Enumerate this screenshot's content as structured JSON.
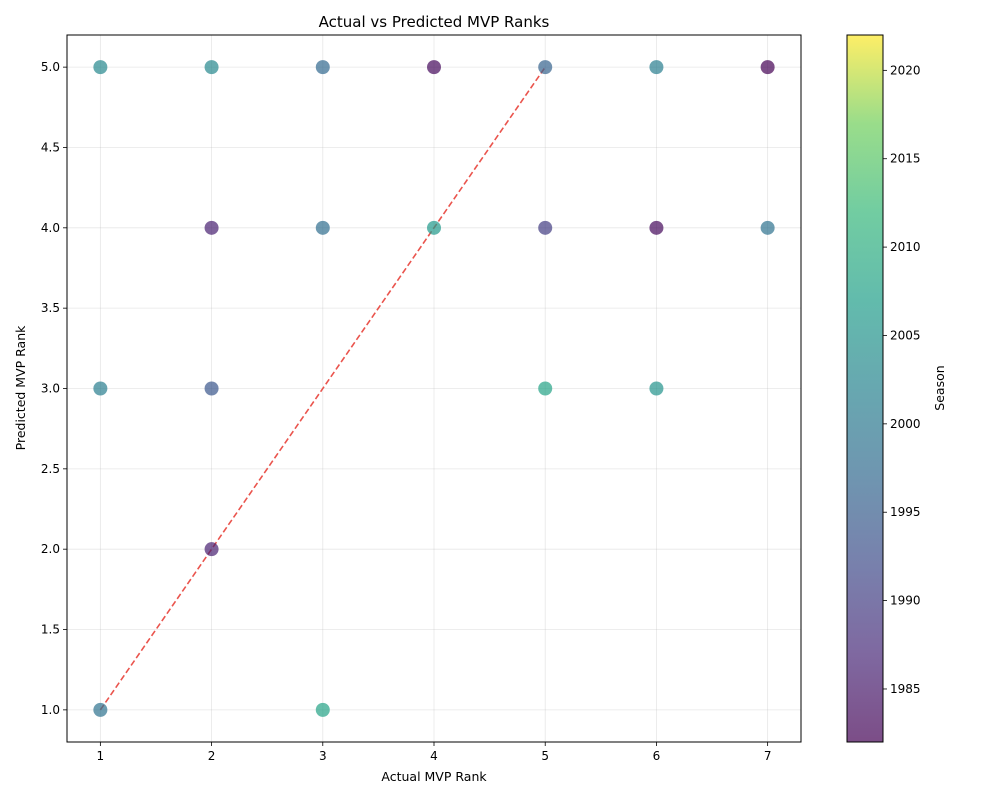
{
  "chart_data": {
    "type": "scatter",
    "title": "Actual vs Predicted MVP Ranks",
    "xlabel": "Actual MVP Rank",
    "ylabel": "Predicted MVP Rank",
    "xlim": [
      0.7,
      7.3
    ],
    "ylim": [
      0.8,
      5.2
    ],
    "xticks": [
      "1",
      "2",
      "3",
      "4",
      "5",
      "6",
      "7"
    ],
    "yticks": [
      "1.0",
      "1.5",
      "2.0",
      "2.5",
      "3.0",
      "3.5",
      "4.0",
      "4.5",
      "5.0"
    ],
    "grid": true,
    "reference_line": {
      "style": "dashed",
      "color": "#e8413a",
      "from": [
        1,
        1
      ],
      "to": [
        5,
        5
      ]
    },
    "colorbar": {
      "label": "Season",
      "colormap": "viridis",
      "range": [
        1982,
        2022
      ],
      "ticks": [
        "1985",
        "1990",
        "1995",
        "2000",
        "2005",
        "2010",
        "2015",
        "2020"
      ]
    },
    "points": [
      {
        "x": 1,
        "y": 5,
        "season": 2003
      },
      {
        "x": 2,
        "y": 5,
        "season": 2003
      },
      {
        "x": 3,
        "y": 5,
        "season": 1997
      },
      {
        "x": 4,
        "y": 5,
        "season": 1983
      },
      {
        "x": 5,
        "y": 5,
        "season": 1996
      },
      {
        "x": 6,
        "y": 5,
        "season": 2001
      },
      {
        "x": 7,
        "y": 5,
        "season": 1982
      },
      {
        "x": 2,
        "y": 4,
        "season": 1986
      },
      {
        "x": 3,
        "y": 4,
        "season": 1998
      },
      {
        "x": 4,
        "y": 4,
        "season": 2006
      },
      {
        "x": 5,
        "y": 4,
        "season": 1990
      },
      {
        "x": 6,
        "y": 4,
        "season": 1983
      },
      {
        "x": 7,
        "y": 4,
        "season": 1999
      },
      {
        "x": 1,
        "y": 3,
        "season": 2001
      },
      {
        "x": 2,
        "y": 3,
        "season": 1994
      },
      {
        "x": 5,
        "y": 3,
        "season": 2008
      },
      {
        "x": 6,
        "y": 3,
        "season": 2005
      },
      {
        "x": 2,
        "y": 2,
        "season": 1986
      },
      {
        "x": 1,
        "y": 1,
        "season": 1999
      },
      {
        "x": 3,
        "y": 1,
        "season": 2008
      }
    ]
  }
}
